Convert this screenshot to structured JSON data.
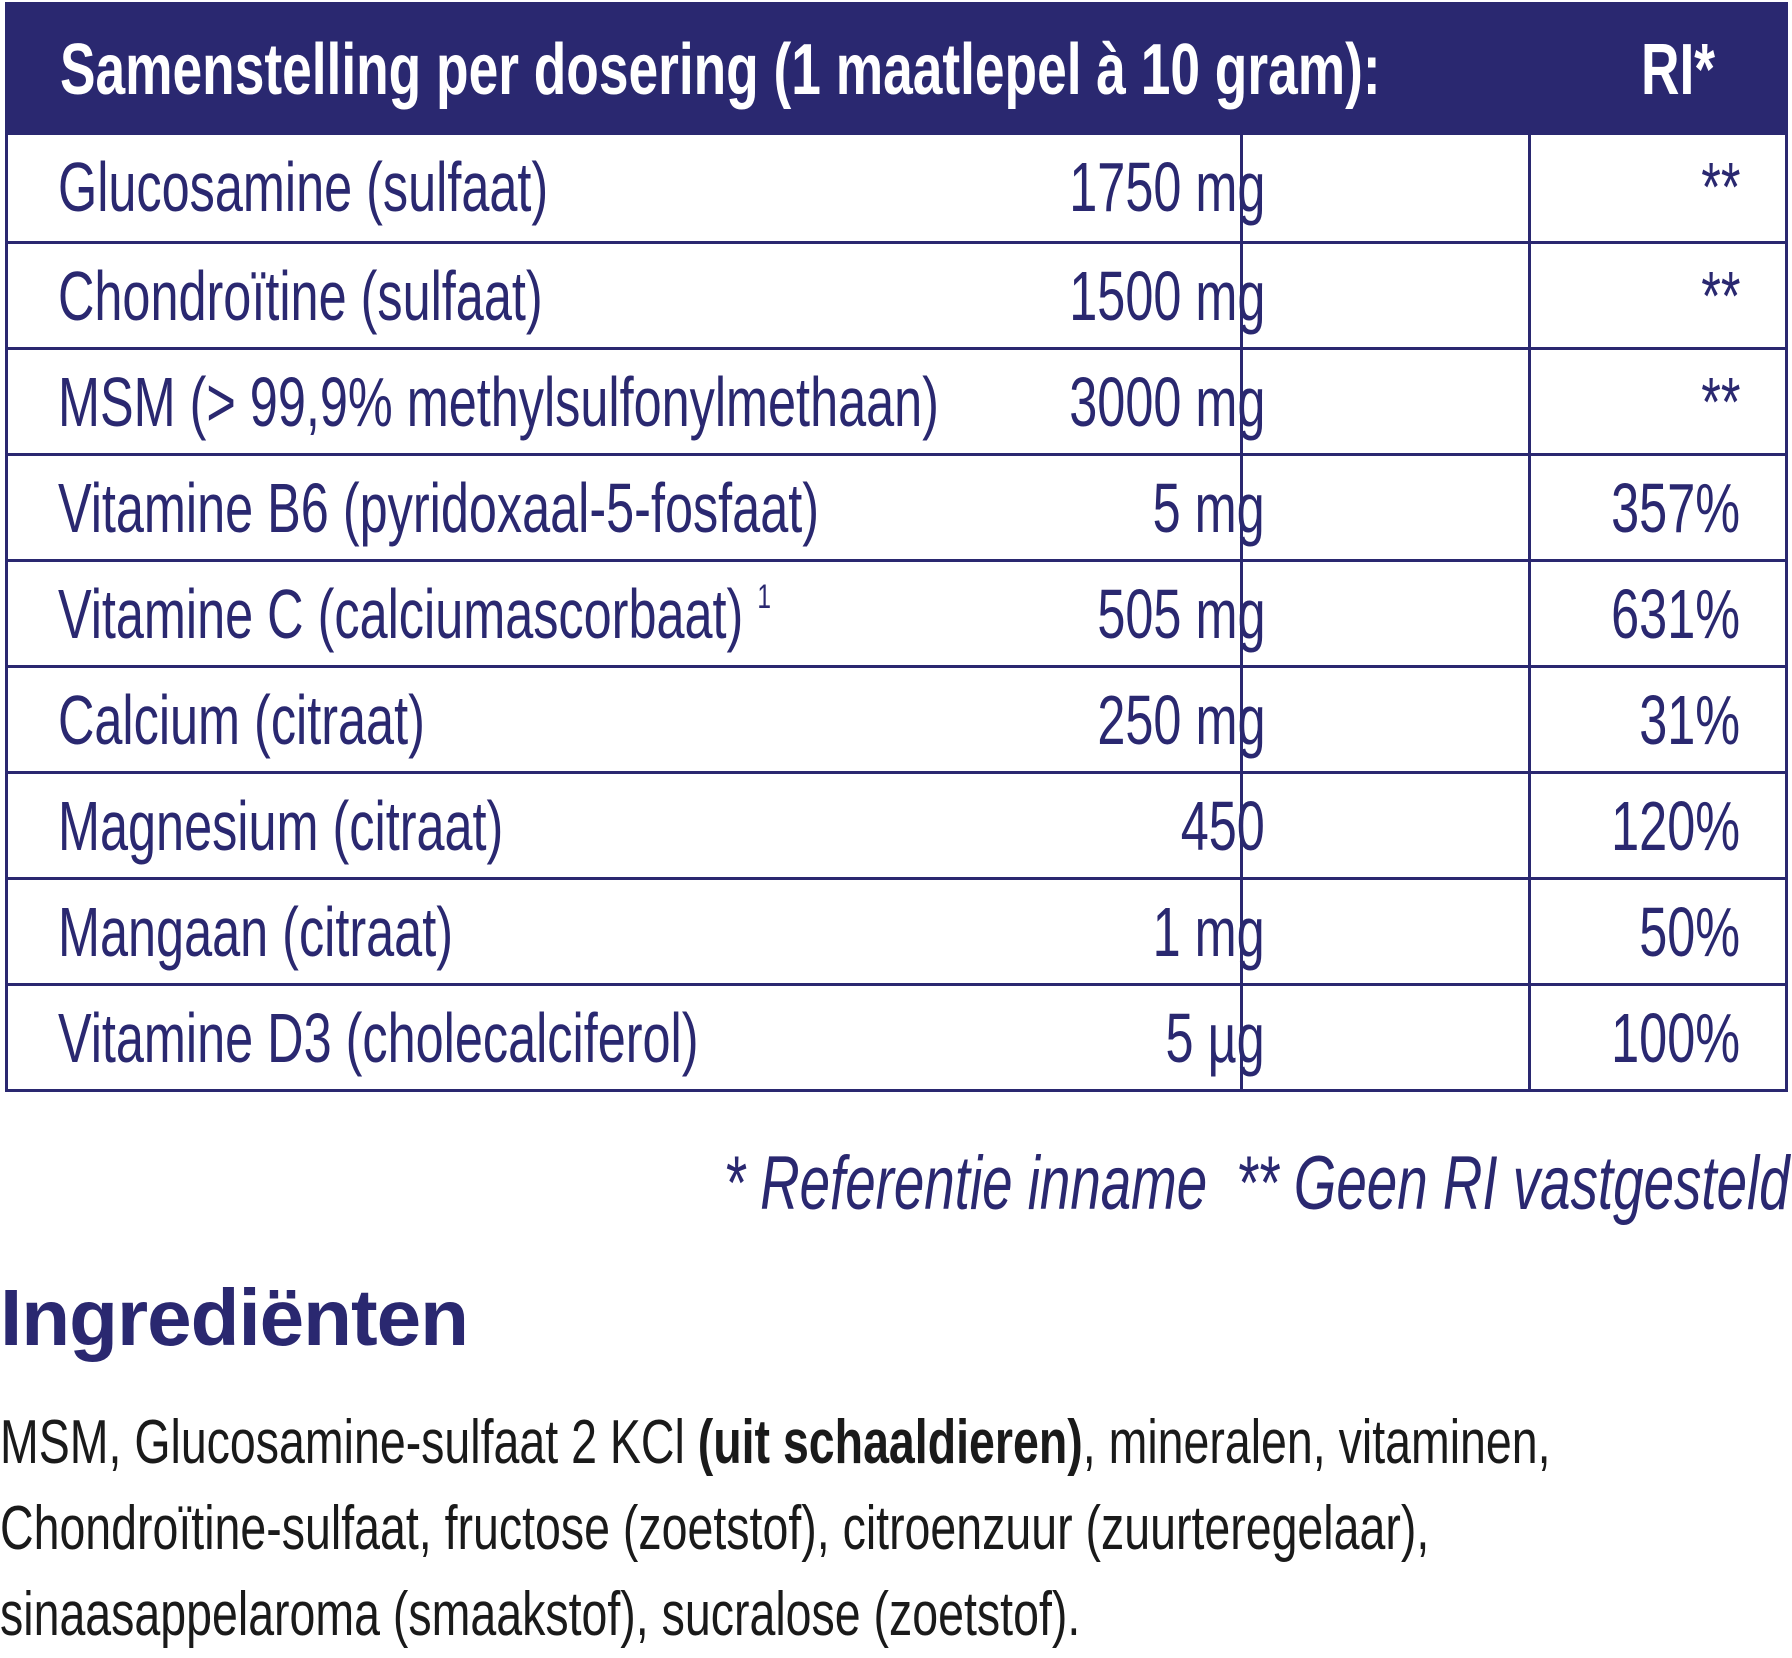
{
  "table": {
    "header": {
      "title": "Samenstelling per dosering (1 maatlepel à 10 gram):",
      "ri": "RI*"
    },
    "rows": [
      {
        "name": "Glucosamine (sulfaat)",
        "sup": "",
        "amount": "1750 mg",
        "ri": "**"
      },
      {
        "name": "Chondroïtine (sulfaat)",
        "sup": "",
        "amount": "1500 mg",
        "ri": "**"
      },
      {
        "name": "MSM (> 99,9% methylsulfonylmethaan)",
        "sup": "",
        "amount": "3000 mg",
        "ri": "**"
      },
      {
        "name": "Vitamine B6 (pyridoxaal-5-fosfaat)",
        "sup": "",
        "amount": "5 mg",
        "ri": "357%"
      },
      {
        "name": "Vitamine C (calciumascorbaat)",
        "sup": "1",
        "amount": "505 mg",
        "ri": "631%"
      },
      {
        "name": "Calcium (citraat)",
        "sup": "",
        "amount": "250 mg",
        "ri": "31%"
      },
      {
        "name": "Magnesium (citraat)",
        "sup": "",
        "amount": "450",
        "ri": "120%"
      },
      {
        "name": "Mangaan (citraat)",
        "sup": "",
        "amount": "1 mg",
        "ri": "50%"
      },
      {
        "name": "Vitamine D3 (cholecalciferol)",
        "sup": "",
        "amount": "5 µg",
        "ri": "100%"
      }
    ]
  },
  "footnotes": {
    "ri": "* Referentie inname",
    "no_ri": "** Geen RI vastgesteld"
  },
  "ingredients": {
    "title": "Ingrediënten",
    "text_before": "MSM, Glucosamine-sulfaat 2 KCl ",
    "allergen": "(uit schaaldieren)",
    "text_after": ", mineralen, vitaminen, Chondroïtine-sulfaat, fructose (zoetstof), citroenzuur (zuurteregelaar), sinaasappelaroma (smaakstof), sucralose (zoetstof)."
  },
  "colors": {
    "brand": "#2a2870"
  }
}
